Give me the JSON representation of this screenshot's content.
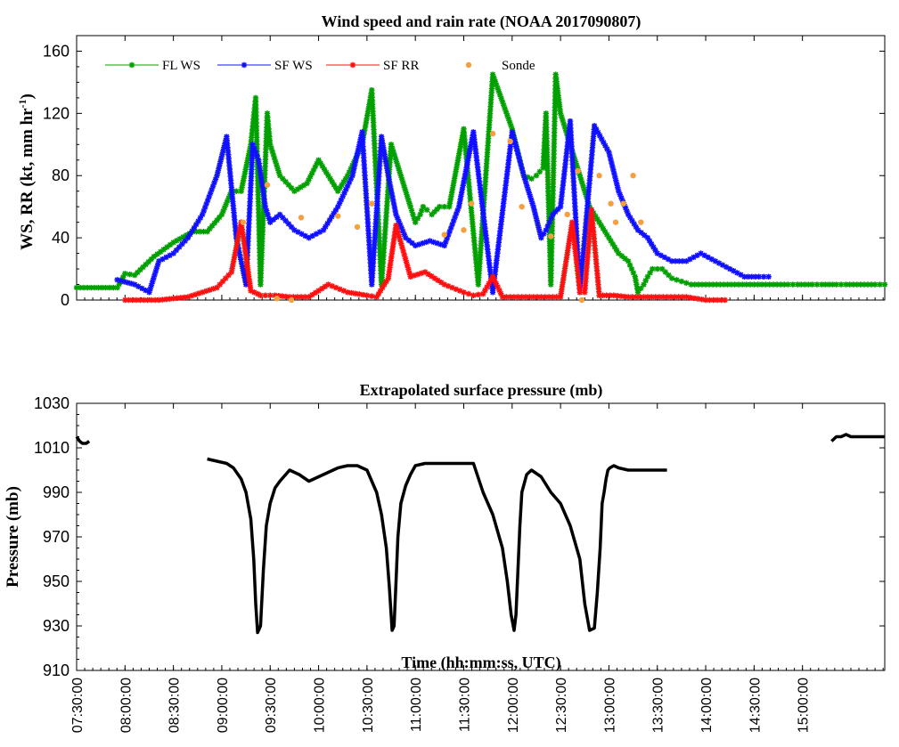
{
  "chart_data": [
    {
      "type": "line",
      "title": "Wind speed and rain rate (NOAA 2017090807)",
      "ylabel_main": "WS, RR (kt, mm hr",
      "ylabel_sup": "-1",
      "ylabel_close": ")",
      "ylim": [
        0,
        170
      ],
      "yticks": [
        0,
        40,
        80,
        120,
        160
      ],
      "xlim_hours": [
        7.5,
        15.85
      ],
      "legend_position": "top-left",
      "series": [
        {
          "name": "FL WS",
          "color": "#00a000",
          "marker": "star",
          "x": [
            7.5,
            7.8,
            7.92,
            8.0,
            8.1,
            8.3,
            8.5,
            8.7,
            8.85,
            9.0,
            9.1,
            9.2,
            9.3,
            9.35,
            9.4,
            9.47,
            9.5,
            9.6,
            9.75,
            9.88,
            10.0,
            10.1,
            10.2,
            10.3,
            10.45,
            10.55,
            10.65,
            10.75,
            10.85,
            10.95,
            11.0,
            11.05,
            11.08,
            11.12,
            11.17,
            11.25,
            11.35,
            11.5,
            11.65,
            11.8,
            12.0,
            12.12,
            12.2,
            12.25,
            12.32,
            12.35,
            12.4,
            12.45,
            12.5,
            12.6,
            12.7,
            12.8,
            12.9,
            13.0,
            13.1,
            13.2,
            13.27,
            13.3,
            13.36,
            13.4,
            13.45,
            13.55,
            13.65,
            13.75,
            13.85,
            14.0,
            14.15,
            14.3,
            14.5,
            14.7,
            14.85,
            14.95,
            15.1,
            15.2,
            15.35,
            15.45,
            15.6,
            15.75,
            15.85
          ],
          "y": [
            8,
            8,
            8,
            17,
            16,
            28,
            37,
            44,
            44,
            55,
            70,
            70,
            100,
            130,
            10,
            120,
            100,
            80,
            70,
            75,
            90,
            80,
            70,
            80,
            100,
            135,
            10,
            100,
            80,
            60,
            50,
            55,
            60,
            58,
            55,
            60,
            60,
            110,
            10,
            145,
            110,
            80,
            78,
            80,
            85,
            120,
            10,
            145,
            120,
            100,
            80,
            60,
            50,
            40,
            30,
            25,
            15,
            5,
            10,
            15,
            20,
            20,
            14,
            12,
            10,
            10,
            10,
            10,
            10,
            10,
            10,
            10,
            10,
            10,
            10,
            10,
            10,
            10,
            10
          ]
        },
        {
          "name": "SF WS",
          "color": "#1010ff",
          "marker": "star",
          "x": [
            7.92,
            8.1,
            8.25,
            8.35,
            8.5,
            8.65,
            8.8,
            8.95,
            9.05,
            9.15,
            9.25,
            9.32,
            9.38,
            9.45,
            9.5,
            9.6,
            9.75,
            9.9,
            10.05,
            10.2,
            10.35,
            10.45,
            10.55,
            10.65,
            10.72,
            10.8,
            10.9,
            11.0,
            11.15,
            11.3,
            11.45,
            11.6,
            11.8,
            12.0,
            12.12,
            12.22,
            12.3,
            12.35,
            12.42,
            12.5,
            12.6,
            12.7,
            12.85,
            13.0,
            13.1,
            13.2,
            13.3,
            13.4,
            13.5,
            13.65,
            13.8,
            13.95,
            14.1,
            14.25,
            14.4,
            14.55,
            14.65
          ],
          "y": [
            13,
            10,
            5,
            25,
            30,
            40,
            55,
            80,
            105,
            40,
            10,
            100,
            90,
            60,
            50,
            55,
            45,
            40,
            45,
            60,
            80,
            108,
            10,
            105,
            80,
            55,
            40,
            35,
            38,
            35,
            60,
            108,
            5,
            108,
            80,
            60,
            40,
            45,
            55,
            60,
            115,
            5,
            112,
            95,
            70,
            55,
            45,
            40,
            30,
            25,
            25,
            30,
            25,
            20,
            15,
            15,
            15
          ]
        },
        {
          "name": "SF RR",
          "color": "#ff1010",
          "marker": "star",
          "x": [
            8.0,
            8.35,
            8.65,
            8.95,
            9.1,
            9.2,
            9.3,
            9.37,
            9.4,
            9.45,
            9.55,
            9.7,
            9.9,
            10.1,
            10.3,
            10.5,
            10.6,
            10.72,
            10.8,
            10.95,
            11.1,
            11.3,
            11.5,
            11.6,
            11.7,
            11.8,
            11.9,
            12.1,
            12.3,
            12.5,
            12.62,
            12.7,
            12.75,
            12.82,
            12.9,
            13.05,
            13.2,
            13.4,
            13.6,
            13.8,
            14.0,
            14.2
          ],
          "y": [
            0,
            0,
            2,
            8,
            18,
            50,
            6,
            4,
            3,
            3,
            3,
            2,
            2,
            10,
            5,
            3,
            2,
            14,
            48,
            15,
            18,
            10,
            5,
            3,
            4,
            15,
            2,
            2,
            2,
            2,
            50,
            5,
            5,
            58,
            3,
            3,
            2,
            2,
            2,
            2,
            0,
            0
          ]
        },
        {
          "name": "Sonde",
          "color": "#f5a040",
          "marker": "circle",
          "x": [
            9.22,
            9.47,
            9.57,
            9.72,
            9.82,
            10.2,
            10.4,
            10.55,
            11.3,
            11.5,
            11.58,
            11.8,
            11.98,
            12.1,
            12.4,
            12.57,
            12.68,
            12.72,
            12.9,
            13.02,
            13.07,
            13.15,
            13.25,
            13.33
          ],
          "y": [
            50,
            74,
            1,
            0,
            53,
            54,
            47,
            62,
            42,
            45,
            62,
            107,
            102,
            60,
            41,
            55,
            83,
            0,
            80,
            62,
            50,
            62,
            80,
            50
          ]
        }
      ]
    },
    {
      "type": "line",
      "title": "Extrapolated surface pressure (mb)",
      "ylabel": "Pressure (mb)",
      "xlabel": "Time (hh:mm:ss, UTC)",
      "ylim": [
        910,
        1030
      ],
      "yticks": [
        910,
        930,
        950,
        970,
        990,
        1010,
        1030
      ],
      "xlim_hours": [
        7.5,
        15.85
      ],
      "xtick_labels": [
        "07:30:00",
        "08:00:00",
        "08:30:00",
        "09:00:00",
        "09:30:00",
        "10:00:00",
        "10:30:00",
        "11:00:00",
        "11:30:00",
        "12:00:00",
        "12:30:00",
        "13:00:00",
        "13:30:00",
        "14:00:00",
        "14:30:00",
        "15:00:00"
      ],
      "xtick_hours": [
        7.5,
        8.0,
        8.5,
        9.0,
        9.5,
        10.0,
        10.5,
        11.0,
        11.5,
        12.0,
        12.5,
        13.0,
        13.5,
        14.0,
        14.5,
        15.0
      ],
      "series": [
        {
          "name": "",
          "color": "#000000",
          "segments": [
            {
              "x": [
                7.5,
                7.53,
                7.56,
                7.6,
                7.63
              ],
              "y": [
                1015,
                1013,
                1012,
                1012,
                1013
              ]
            },
            {
              "x": [
                8.85,
                8.95,
                9.05,
                9.12,
                9.2,
                9.25,
                9.3,
                9.33,
                9.35,
                9.37,
                9.4,
                9.43,
                9.46,
                9.5,
                9.55,
                9.6,
                9.7,
                9.8,
                9.9,
                10.0,
                10.1,
                10.2,
                10.3,
                10.4,
                10.5,
                10.6,
                10.65,
                10.7,
                10.73,
                10.76,
                10.78,
                10.8,
                10.82,
                10.85,
                10.9,
                10.95,
                11.0,
                11.1,
                11.2,
                11.3,
                11.4,
                11.5,
                11.6,
                11.7,
                11.8,
                11.9,
                11.95,
                11.99,
                12.02,
                12.04,
                12.06,
                12.08,
                12.1,
                12.15,
                12.2,
                12.3,
                12.4,
                12.5,
                12.6,
                12.7,
                12.75,
                12.8,
                12.85,
                12.88,
                12.91,
                12.93,
                12.95,
                12.97,
                12.99,
                13.01,
                13.05,
                13.1,
                13.2,
                13.3,
                13.4,
                13.5,
                13.6
              ],
              "y": [
                1005,
                1004,
                1003,
                1001,
                996,
                990,
                978,
                960,
                940,
                927,
                930,
                955,
                975,
                985,
                992,
                995,
                1000,
                998,
                995,
                997,
                999,
                1001,
                1002,
                1002,
                1000,
                990,
                980,
                965,
                948,
                928,
                930,
                950,
                970,
                985,
                993,
                998,
                1002,
                1003,
                1003,
                1003,
                1003,
                1003,
                1003,
                990,
                980,
                965,
                950,
                935,
                928,
                935,
                955,
                975,
                990,
                998,
                1000,
                997,
                990,
                985,
                975,
                960,
                940,
                928,
                929,
                945,
                965,
                985,
                990,
                996,
                1000,
                1001,
                1002,
                1001,
                1000,
                1000,
                1000,
                1000,
                1000
              ]
            },
            {
              "x": [
                15.3,
                15.35,
                15.4,
                15.45,
                15.5,
                15.55,
                15.6,
                15.65,
                15.75,
                15.85
              ],
              "y": [
                1013,
                1015,
                1015,
                1016,
                1015,
                1015,
                1015,
                1015,
                1015,
                1015
              ]
            }
          ]
        }
      ]
    }
  ]
}
